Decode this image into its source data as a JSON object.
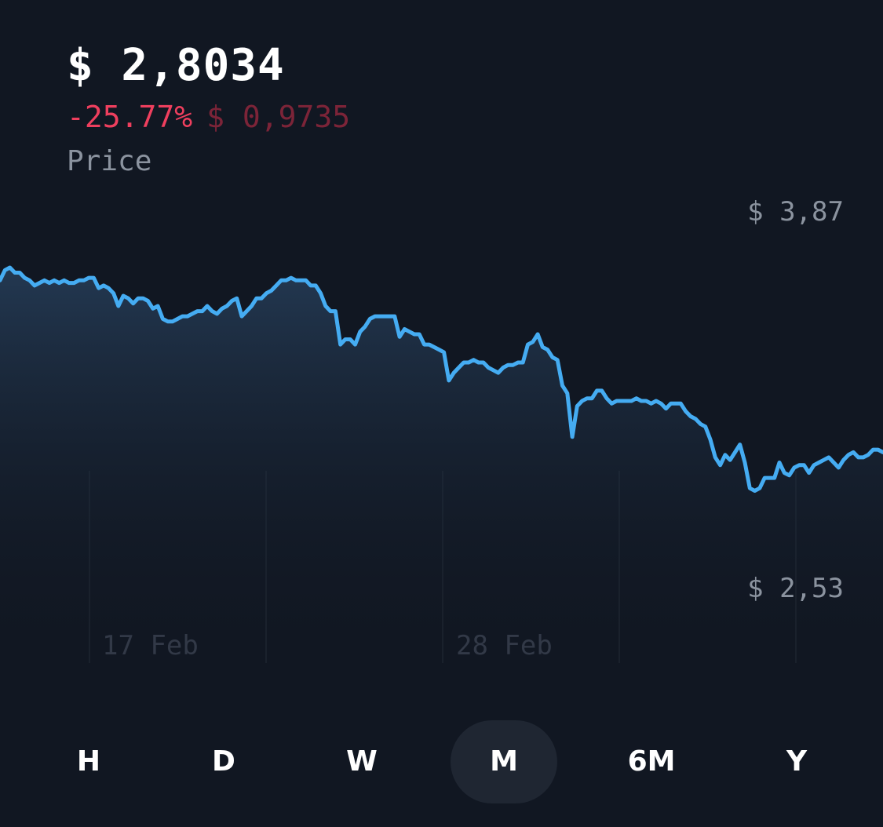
{
  "header": {
    "price": "$ 2,8034",
    "change_percent": "-25.77%",
    "change_amount": "$ 0,9735",
    "caption": "Price"
  },
  "range": {
    "max_label": "$ 3,87",
    "min_label": "$ 2,53"
  },
  "timeframes": [
    {
      "label": "H",
      "active": false
    },
    {
      "label": "D",
      "active": false
    },
    {
      "label": "W",
      "active": false
    },
    {
      "label": "M",
      "active": true
    },
    {
      "label": "6M",
      "active": false
    },
    {
      "label": "Y",
      "active": false
    }
  ],
  "colors": {
    "background": "#111722",
    "line": "#45acf2",
    "negative": "#ef3f5e",
    "negative_muted": "#7c2438",
    "muted_text": "#8b939f",
    "active_tab": "#1f2632"
  },
  "chart_data": {
    "type": "area",
    "x_ticks": [
      "17 Feb",
      "28 Feb"
    ],
    "ylim": [
      2.53,
      3.87
    ],
    "grid": "vertical",
    "series": [
      {
        "values": [
          3.63,
          3.67,
          3.68,
          3.66,
          3.66,
          3.64,
          3.63,
          3.61,
          3.62,
          3.63,
          3.62,
          3.63,
          3.62,
          3.63,
          3.62,
          3.62,
          3.63,
          3.63,
          3.64,
          3.64,
          3.6,
          3.61,
          3.6,
          3.58,
          3.53,
          3.57,
          3.56,
          3.54,
          3.56,
          3.56,
          3.55,
          3.52,
          3.53,
          3.48,
          3.47,
          3.47,
          3.48,
          3.49,
          3.49,
          3.5,
          3.51,
          3.51,
          3.53,
          3.51,
          3.5,
          3.52,
          3.53,
          3.55,
          3.56,
          3.49,
          3.51,
          3.53,
          3.56,
          3.56,
          3.58,
          3.59,
          3.61,
          3.63,
          3.63,
          3.64,
          3.63,
          3.63,
          3.63,
          3.61,
          3.61,
          3.58,
          3.53,
          3.51,
          3.51,
          3.38,
          3.4,
          3.4,
          3.38,
          3.43,
          3.45,
          3.48,
          3.49,
          3.49,
          3.49,
          3.49,
          3.49,
          3.41,
          3.44,
          3.43,
          3.42,
          3.42,
          3.38,
          3.38,
          3.37,
          3.36,
          3.35,
          3.24,
          3.27,
          3.29,
          3.31,
          3.31,
          3.32,
          3.31,
          3.31,
          3.29,
          3.28,
          3.27,
          3.29,
          3.3,
          3.3,
          3.31,
          3.31,
          3.38,
          3.39,
          3.42,
          3.37,
          3.36,
          3.33,
          3.32,
          3.22,
          3.19,
          3.02,
          3.14,
          3.16,
          3.17,
          3.17,
          3.2,
          3.2,
          3.17,
          3.15,
          3.16,
          3.16,
          3.16,
          3.16,
          3.17,
          3.16,
          3.16,
          3.15,
          3.16,
          3.15,
          3.13,
          3.15,
          3.15,
          3.15,
          3.12,
          3.1,
          3.09,
          3.07,
          3.06,
          3.01,
          2.94,
          2.91,
          2.95,
          2.93,
          2.96,
          2.99,
          2.92,
          2.82,
          2.81,
          2.82,
          2.86,
          2.86,
          2.86,
          2.92,
          2.88,
          2.87,
          2.9,
          2.91,
          2.91,
          2.88,
          2.91,
          2.92,
          2.93,
          2.94,
          2.92,
          2.9,
          2.93,
          2.95,
          2.96,
          2.94,
          2.94,
          2.95,
          2.97,
          2.97,
          2.96
        ]
      }
    ]
  }
}
